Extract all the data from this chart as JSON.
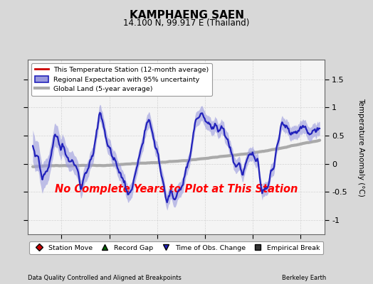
{
  "title": "KAMPHAENG SAEN",
  "subtitle": "14.100 N, 99.917 E (Thailand)",
  "ylabel": "Temperature Anomaly (°C)",
  "xlabel_left": "Data Quality Controlled and Aligned at Breakpoints",
  "xlabel_right": "Berkeley Earth",
  "no_data_text": "No Complete Years to Plot at This Station",
  "ylim": [
    -1.25,
    1.85
  ],
  "xlim": [
    1961.5,
    1992.5
  ],
  "xticks": [
    1965,
    1970,
    1975,
    1980,
    1985,
    1990
  ],
  "yticks": [
    -1.0,
    -0.5,
    0.0,
    0.5,
    1.0,
    1.5
  ],
  "bg_color": "#e0e0e0",
  "plot_bg_color": "#f0f0f0",
  "regional_color": "#2222bb",
  "regional_fill_color": "#9999dd",
  "station_color": "#cc0000",
  "global_color": "#aaaaaa",
  "global_lw": 3.0,
  "regional_lw": 1.6,
  "legend1_entries": [
    {
      "label": "This Temperature Station (12-month average)",
      "color": "#cc0000",
      "lw": 2.0
    },
    {
      "label": "Regional Expectation with 95% uncertainty",
      "color": "#2222bb",
      "fill": "#9999dd"
    },
    {
      "label": "Global Land (5-year average)",
      "color": "#aaaaaa",
      "lw": 3.0
    }
  ],
  "legend2_entries": [
    {
      "label": "Station Move",
      "marker": "D",
      "color": "#cc0000"
    },
    {
      "label": "Record Gap",
      "marker": "^",
      "color": "#006600"
    },
    {
      "label": "Time of Obs. Change",
      "marker": "v",
      "color": "#2222bb"
    },
    {
      "label": "Empirical Break",
      "marker": "s",
      "color": "#333333"
    }
  ]
}
